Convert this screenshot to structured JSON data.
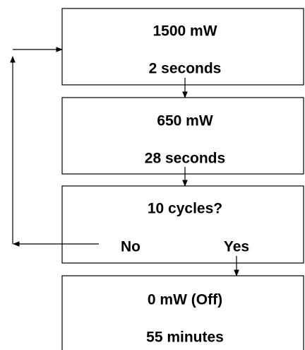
{
  "nodes": [
    {
      "lines": [
        "1500 mW",
        "2 seconds"
      ]
    },
    {
      "lines": [
        "650 mW",
        "28 seconds"
      ]
    },
    {
      "lines": [
        "10 cycles?"
      ],
      "no": "No",
      "yes": "Yes"
    },
    {
      "lines": [
        "0 mW (Off)",
        "55 minutes"
      ]
    }
  ]
}
